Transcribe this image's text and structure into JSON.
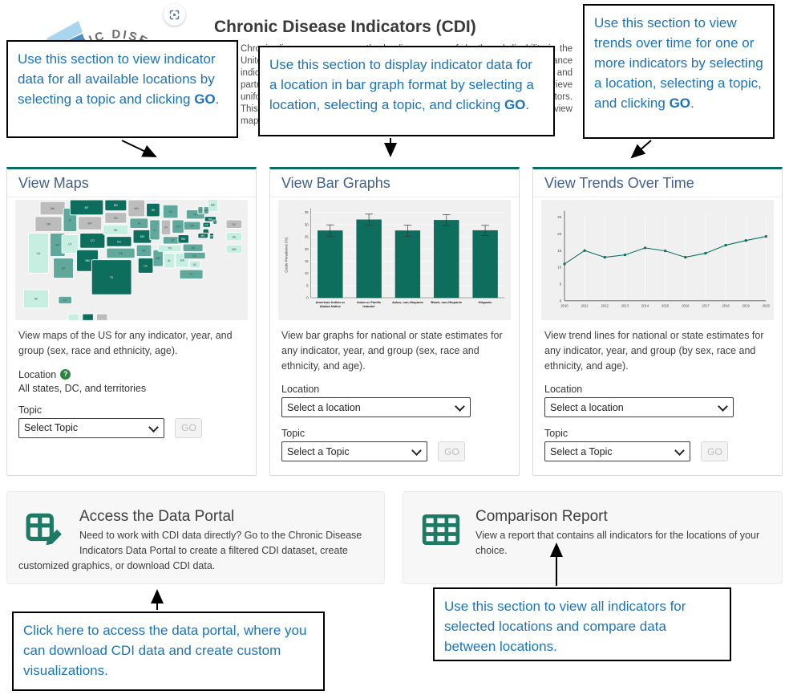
{
  "page": {
    "title": "Chronic Disease Indicators (CDI)"
  },
  "header": {
    "logo_text": "CHRONIC DISEASE IN",
    "intro": "Chronic diseases are among the leading causes of death and disability in the United States. The Chronic Disease Indicators (CDI) are a set of surveillance indicators developed by consensus that have taken shape among CDC and partners. CDI enables public health professionals and policymakers to retrieve uniformly defined state and selected data for chronic diseases and risk factors. This tool can inform programs and policies. Use the sections below to view maps, bar graphs, trends, or to access the data."
  },
  "colors": {
    "accent_teal": "#0a6b5e",
    "callout_blue": "#1b74b8",
    "card_title_blue": "#44608a",
    "icon_teal": "#1d7a64"
  },
  "callouts": {
    "maps": {
      "text": "Use this section to view indicator data for all available locations by selecting a topic and clicking ",
      "go": "GO",
      "suffix": "."
    },
    "bars": {
      "text": "Use this section to display indicator data for a location in bar graph format by selecting a location, selecting a topic, and clicking ",
      "go": "GO",
      "suffix": "."
    },
    "trends": {
      "text": "Use this section to view trends over time for one or more indicators by selecting a location, selecting a topic, and clicking ",
      "go": "GO",
      "suffix": "."
    },
    "portal": {
      "text": "Click here to access the data portal, where you can download CDI data and create custom visualizations."
    },
    "comparison": {
      "text": "Use this section to view all indicators for selected locations and compare data between locations."
    }
  },
  "cards": {
    "maps": {
      "title": "View Maps",
      "description": "View maps of the US for any indicator, year, and group (sex, race and ethnicity, age).",
      "location_label": "Location",
      "location_value": "All states, DC, and territories",
      "topic_label": "Topic",
      "topic_placeholder": "Select Topic",
      "go_label": "GO"
    },
    "bars": {
      "title": "View Bar Graphs",
      "description": "View bar graphs for national or state estimates for any indicator, year, and group (sex, race and ethnicity, and age).",
      "location_label": "Location",
      "location_placeholder": "Select a location",
      "topic_label": "Topic",
      "topic_placeholder": "Select a Topic",
      "go_label": "GO"
    },
    "trends": {
      "title": "View Trends Over Time",
      "description": "View trend lines for national or state estimates for any indicator, year, and group (by sex, race and ethnicity, and age).",
      "location_label": "Location",
      "location_placeholder": "Select a location",
      "topic_label": "Topic",
      "topic_placeholder": "Select a Topic",
      "go_label": "GO"
    }
  },
  "portal": {
    "title": "Access the Data Portal",
    "description": "Need to work with CDI data directly? Go to the Chronic Disease Indicators Data Portal to create a filtered CDI dataset, create customized graphics, or download CDI data."
  },
  "comparison": {
    "title": "Comparison Report",
    "description": "View a report that contains all indicators for the locations of your choice."
  },
  "chart_data": [
    {
      "type": "heatmap",
      "title": "US choropleth map preview",
      "shade_colors": {
        "l": "#c6efe2",
        "m": "#5fa89b",
        "d": "#0e6e5e",
        "g": "#bcbcbc"
      },
      "states": [
        [
          "WA",
          30,
          6,
          30,
          16,
          "g"
        ],
        [
          "OR",
          24,
          24,
          32,
          18,
          "g"
        ],
        [
          "CA",
          16,
          44,
          24,
          48,
          "l"
        ],
        [
          "NV",
          42,
          44,
          18,
          28,
          "m"
        ],
        [
          "ID",
          58,
          14,
          16,
          28,
          "m"
        ],
        [
          "MT",
          66,
          4,
          40,
          18,
          "d"
        ],
        [
          "WY",
          76,
          24,
          28,
          16,
          "g"
        ],
        [
          "UT",
          56,
          46,
          20,
          22,
          "l"
        ],
        [
          "CO",
          78,
          44,
          30,
          18,
          "d"
        ],
        [
          "AZ",
          46,
          74,
          24,
          24,
          "m"
        ],
        [
          "NM",
          74,
          64,
          26,
          26,
          "d"
        ],
        [
          "ND",
          108,
          4,
          26,
          13,
          "d"
        ],
        [
          "SD",
          108,
          19,
          26,
          13,
          "g"
        ],
        [
          "NE",
          106,
          34,
          30,
          12,
          "l"
        ],
        [
          "KS",
          110,
          48,
          30,
          12,
          "d"
        ],
        [
          "OK",
          110,
          62,
          34,
          12,
          "m"
        ],
        [
          "TX",
          92,
          76,
          48,
          42,
          "d"
        ],
        [
          "MN",
          136,
          4,
          20,
          20,
          "g"
        ],
        [
          "IA",
          138,
          26,
          22,
          12,
          "m"
        ],
        [
          "MO",
          142,
          40,
          22,
          16,
          "d"
        ],
        [
          "AR",
          146,
          58,
          18,
          14,
          "m"
        ],
        [
          "LA",
          148,
          74,
          18,
          18,
          "d"
        ],
        [
          "WI",
          158,
          8,
          16,
          16,
          "d"
        ],
        [
          "IL",
          162,
          28,
          12,
          24,
          "m"
        ],
        [
          "MS",
          166,
          64,
          12,
          20,
          "m"
        ],
        [
          "MI",
          178,
          10,
          18,
          16,
          "m"
        ],
        [
          "IN",
          176,
          28,
          11,
          18,
          "g"
        ],
        [
          "OH",
          189,
          28,
          14,
          16,
          "m"
        ],
        [
          "KY",
          178,
          48,
          24,
          9,
          "m"
        ],
        [
          "TN",
          172,
          58,
          28,
          8,
          "l"
        ],
        [
          "AL",
          179,
          68,
          13,
          18,
          "l"
        ],
        [
          "GA",
          193,
          68,
          16,
          17,
          "l"
        ],
        [
          "FL",
          198,
          88,
          28,
          11,
          "m"
        ],
        [
          "WV",
          196,
          46,
          13,
          10,
          "d"
        ],
        [
          "VA",
          202,
          57,
          24,
          9,
          "m"
        ],
        [
          "NC",
          203,
          67,
          26,
          8,
          "m"
        ],
        [
          "SC",
          210,
          77,
          13,
          9,
          "l"
        ],
        [
          "PA",
          203,
          30,
          20,
          10,
          "m"
        ],
        [
          "NY",
          206,
          16,
          22,
          11,
          "m"
        ],
        [
          "ME",
          232,
          2,
          12,
          16,
          "l"
        ],
        [
          "VT",
          220,
          12,
          6,
          9,
          "m"
        ],
        [
          "NH",
          227,
          12,
          6,
          9,
          "m"
        ],
        [
          "MA",
          228,
          24,
          14,
          6,
          "d"
        ],
        [
          "CT",
          226,
          31,
          9,
          6,
          "d"
        ],
        [
          "RI",
          238,
          28,
          5,
          5,
          "d"
        ],
        [
          "NJ",
          226,
          39,
          7,
          10,
          "d"
        ],
        [
          "DE",
          234,
          44,
          5,
          7,
          "d"
        ],
        [
          "MD",
          220,
          44,
          12,
          6,
          "d"
        ],
        [
          "AK",
          10,
          112,
          30,
          22,
          "l"
        ],
        [
          "HI",
          52,
          120,
          16,
          9,
          "m"
        ]
      ],
      "chips": [
        [
          "DC",
          "g"
        ],
        [
          "DE",
          "l"
        ],
        [
          "MD",
          "l"
        ]
      ],
      "legend_chips": [
        "l",
        "d",
        "g"
      ]
    },
    {
      "type": "bar",
      "categories": [
        "American Indian or Alaska Native",
        "Asian or Pacific Islander",
        "Asian, non-Hispanic",
        "Black, non-Hispanic",
        "Hispanic"
      ],
      "category_lines": [
        [
          "American Indian or",
          "Alaska Native"
        ],
        [
          "Asian or Pacific",
          "Islander"
        ],
        [
          "Asian, non-Hispanic"
        ],
        [
          "Black, non-Hispanic"
        ],
        [
          "Hispanic"
        ]
      ],
      "values": [
        27.5,
        32.0,
        27.5,
        31.8,
        27.6
      ],
      "errors": [
        2.4,
        2.3,
        2.3,
        2.3,
        2.1
      ],
      "title": "",
      "xlabel": "",
      "ylabel": "Crude Prevalence (%)",
      "ylim": [
        0,
        35
      ],
      "yticks": [
        0,
        5,
        10,
        15,
        20,
        25,
        30,
        35
      ],
      "bar_color": "#0e6e5e"
    },
    {
      "type": "line",
      "x": [
        2010,
        2011,
        2012,
        2013,
        2014,
        2015,
        2016,
        2017,
        2018,
        2019,
        2020
      ],
      "values": [
        11,
        15,
        13,
        13.7,
        15.8,
        14.9,
        13,
        14.2,
        16.6,
        18,
        19.2
      ],
      "title": "",
      "xlabel": "",
      "ylabel": "",
      "ylim": [
        0,
        25
      ],
      "yticks": [
        0,
        5,
        10,
        15,
        20,
        25
      ],
      "line_color": "#0e6e5e"
    }
  ]
}
